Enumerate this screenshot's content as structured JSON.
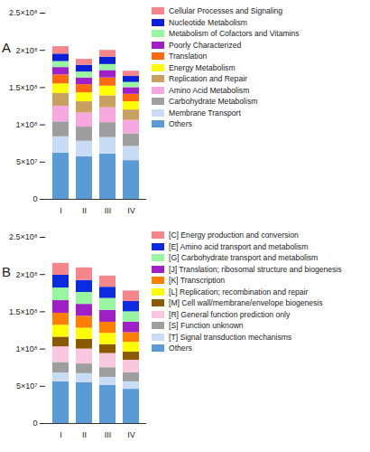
{
  "chart_data": [
    {
      "type": "bar",
      "title": "A",
      "stacked": true,
      "categories": [
        "I",
        "II",
        "III",
        "IV"
      ],
      "ylim": [
        0,
        250000000
      ],
      "yticks": [
        0,
        {
          "value": 50000000,
          "label": "5×10⁷"
        },
        {
          "value": 100000000,
          "label": "1×10⁸"
        },
        {
          "value": 150000000,
          "label": "1.5×10⁸"
        },
        {
          "value": 200000000,
          "label": "2×10⁸"
        },
        {
          "value": 250000000,
          "label": "2.5×10⁸"
        }
      ],
      "series": [
        {
          "name": "Others",
          "color": "#5b9bd5",
          "values": [
            62000000,
            57000000,
            61000000,
            52000000
          ]
        },
        {
          "name": "Membrane Transport",
          "color": "#c8dcf5",
          "values": [
            22000000,
            21000000,
            22000000,
            19000000
          ]
        },
        {
          "name": "Carbohydrate Metabolism",
          "color": "#9e9e9e",
          "values": [
            20000000,
            19000000,
            20000000,
            17000000
          ]
        },
        {
          "name": "Amino Acid Metabolism",
          "color": "#f7a8e0",
          "values": [
            21000000,
            19000000,
            20000000,
            18000000
          ]
        },
        {
          "name": "Replication and Repair",
          "color": "#c8a060",
          "values": [
            17000000,
            15000000,
            16000000,
            14000000
          ]
        },
        {
          "name": "Energy Metabolism",
          "color": "#ffff00",
          "values": [
            13000000,
            12000000,
            13000000,
            11000000
          ]
        },
        {
          "name": "Translation",
          "color": "#ff6a10",
          "values": [
            12000000,
            11000000,
            11000000,
            10000000
          ]
        },
        {
          "name": "Poorly Characterized",
          "color": "#a020c8",
          "values": [
            10000000,
            9000000,
            10000000,
            9000000
          ]
        },
        {
          "name": "Metabolism of Cofactors and Vitamins",
          "color": "#98f5a0",
          "values": [
            8000000,
            8000000,
            8000000,
            7000000
          ]
        },
        {
          "name": "Nucleotide Metabolism",
          "color": "#0a1fd6",
          "values": [
            10000000,
            9000000,
            10000000,
            8000000
          ]
        },
        {
          "name": "Cellular Processes and Signaling",
          "color": "#f4868c",
          "values": [
            10000000,
            8000000,
            9000000,
            7000000
          ]
        }
      ]
    },
    {
      "type": "bar",
      "title": "B",
      "stacked": true,
      "categories": [
        "I",
        "II",
        "III",
        "IV"
      ],
      "ylim": [
        0,
        250000000
      ],
      "yticks": [
        0,
        {
          "value": 50000000,
          "label": "5×10⁷"
        },
        {
          "value": 100000000,
          "label": "1×10⁸"
        },
        {
          "value": 150000000,
          "label": "1.5×10⁸"
        },
        {
          "value": 200000000,
          "label": "2×10⁸"
        },
        {
          "value": 250000000,
          "label": "2.5×10⁸"
        }
      ],
      "series": [
        {
          "name": "Others",
          "color": "#5b9bd5",
          "values": [
            56000000,
            55000000,
            51000000,
            46000000
          ]
        },
        {
          "name": "[T] Signal transduction mechanisms",
          "color": "#c8dcf5",
          "values": [
            12000000,
            12000000,
            11000000,
            10000000
          ]
        },
        {
          "name": "[S] Function unknown",
          "color": "#9e9e9e",
          "values": [
            14000000,
            13000000,
            13000000,
            12000000
          ]
        },
        {
          "name": "[R] General function prediction only",
          "color": "#f9c8e0",
          "values": [
            21000000,
            20000000,
            19000000,
            17000000
          ]
        },
        {
          "name": "[M] Cell wall/membrane/envelope biogenesis",
          "color": "#8b5a00",
          "values": [
            13000000,
            13000000,
            12000000,
            11000000
          ]
        },
        {
          "name": "[L] Replication; recombination and repair",
          "color": "#ffff00",
          "values": [
            16000000,
            15000000,
            15000000,
            13000000
          ]
        },
        {
          "name": "[K] Transcription",
          "color": "#ff7f00",
          "values": [
            16000000,
            16000000,
            15000000,
            13000000
          ]
        },
        {
          "name": "[J] Translation; ribosomal structure and biogenesis",
          "color": "#a020c8",
          "values": [
            17000000,
            16000000,
            16000000,
            14000000
          ]
        },
        {
          "name": "[G] Carbohydrate transport and metabolism",
          "color": "#98f5a0",
          "values": [
            17000000,
            16000000,
            16000000,
            14000000
          ]
        },
        {
          "name": "[E] Amino acid transport and metabolism",
          "color": "#0a2be0",
          "values": [
            17000000,
            16000000,
            15000000,
            14000000
          ]
        },
        {
          "name": "[C] Energy production and conversion",
          "color": "#f4868c",
          "values": [
            16000000,
            17000000,
            15000000,
            14000000
          ]
        }
      ]
    }
  ]
}
